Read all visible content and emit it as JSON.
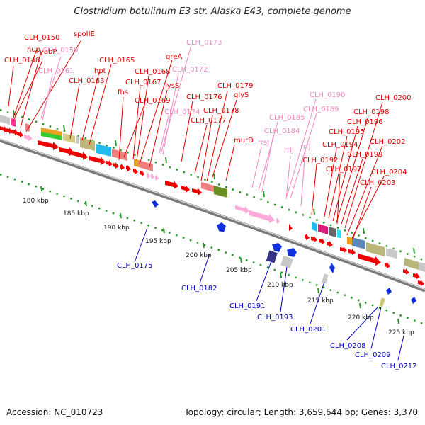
{
  "title": "Clostridium botulinum E3 str. Alaska E43, complete genome",
  "footer": {
    "accession": "Accession: NC_010723",
    "topology": "Topology: circular; Length: 3,659,644 bp; Genes: 3,370"
  },
  "colors": {
    "forward_label": "#dd0000",
    "rna_label": "#ee88c0",
    "reverse_label": "#0000bb",
    "forward_gene": "#ee0000",
    "reverse_gene": "#1030e0",
    "rrna": "#ffaad8",
    "backbone": "#888888"
  },
  "scale": [
    {
      "label": "180 kbp"
    },
    {
      "label": "185 kbp"
    },
    {
      "label": "190 kbp"
    },
    {
      "label": "195 kbp"
    },
    {
      "label": "200 kbp"
    },
    {
      "label": "205 kbp"
    },
    {
      "label": "210 kbp"
    },
    {
      "label": "215 kbp"
    },
    {
      "label": "220 kbp"
    },
    {
      "label": "225 kbp"
    }
  ],
  "labels_top": [
    {
      "text": "yabP",
      "color": "red"
    },
    {
      "text": "CLH_0150",
      "color": "red"
    },
    {
      "text": "spoIIE",
      "color": "red"
    },
    {
      "text": "hup",
      "color": "red"
    },
    {
      "text": "CLH_0159",
      "color": "pink"
    },
    {
      "text": "CLH_0148",
      "color": "red"
    },
    {
      "text": "CLH_0173",
      "color": "pink"
    },
    {
      "text": "greA",
      "color": "red"
    },
    {
      "text": "CLH_0165",
      "color": "red"
    },
    {
      "text": "CLH_0161",
      "color": "pink"
    },
    {
      "text": "hpt",
      "color": "red"
    },
    {
      "text": "CLH_0168",
      "color": "red"
    },
    {
      "text": "CLH_0172",
      "color": "pink"
    },
    {
      "text": "CLH_0163",
      "color": "red"
    },
    {
      "text": "CLH_0167",
      "color": "red"
    },
    {
      "text": "lysS",
      "color": "red"
    },
    {
      "text": "CLH_0179",
      "color": "red"
    },
    {
      "text": "fhs",
      "color": "red"
    },
    {
      "text": "glyS",
      "color": "red"
    },
    {
      "text": "CLH_0176",
      "color": "red"
    },
    {
      "text": "CLH_0169",
      "color": "red"
    },
    {
      "text": "CLH_0190",
      "color": "pink"
    },
    {
      "text": "CLH_0200",
      "color": "red"
    },
    {
      "text": "CLH_0178",
      "color": "red"
    },
    {
      "text": "CLH_0174",
      "color": "pink"
    },
    {
      "text": "CLH_0189",
      "color": "pink"
    },
    {
      "text": "CLH_0198",
      "color": "red"
    },
    {
      "text": "CLH_0177",
      "color": "red"
    },
    {
      "text": "CLH_0185",
      "color": "pink"
    },
    {
      "text": "CLH_0196",
      "color": "red"
    },
    {
      "text": "CLH_0184",
      "color": "pink"
    },
    {
      "text": "CLH_0195",
      "color": "red"
    },
    {
      "text": "murD",
      "color": "red"
    },
    {
      "text": "rrsJ",
      "color": "pink"
    },
    {
      "text": "CLH_0202",
      "color": "red"
    },
    {
      "text": "CLH_0194",
      "color": "red"
    },
    {
      "text": "rrlJ",
      "color": "pink"
    },
    {
      "text": "rrfJ",
      "color": "pink"
    },
    {
      "text": "CLH_0199",
      "color": "red"
    },
    {
      "text": "CLH_0192",
      "color": "red"
    },
    {
      "text": "CLH_0197",
      "color": "red"
    },
    {
      "text": "CLH_0204",
      "color": "red"
    },
    {
      "text": "CLH_0203",
      "color": "red"
    }
  ],
  "labels_bottom": [
    {
      "text": "CLH_0175"
    },
    {
      "text": "CLH_0182"
    },
    {
      "text": "CLH_0191"
    },
    {
      "text": "CLH_0193"
    },
    {
      "text": "CLH_0201"
    },
    {
      "text": "CLH_0208"
    },
    {
      "text": "CLH_0209"
    },
    {
      "text": "CLH_0212"
    }
  ]
}
